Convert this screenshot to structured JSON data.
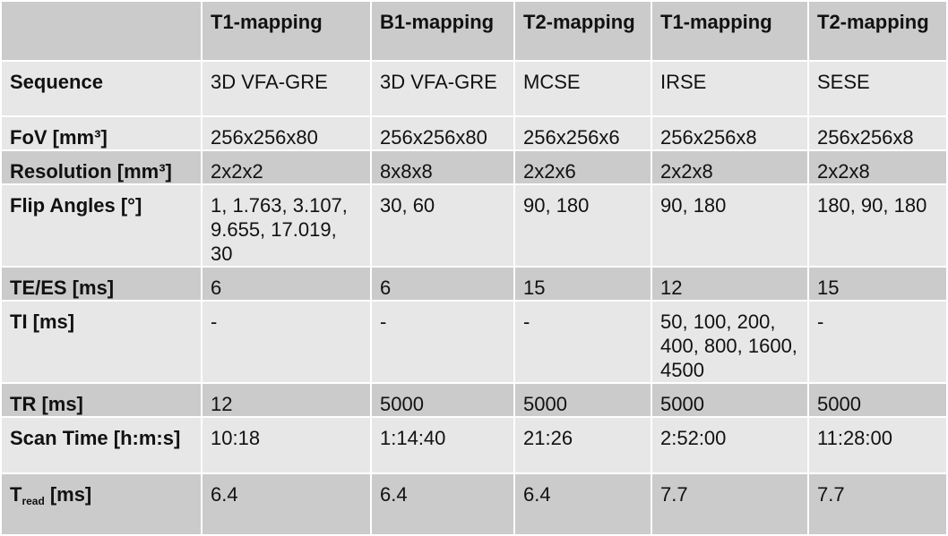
{
  "table": {
    "header": [
      "T1-mapping",
      "B1-mapping",
      "T2-mapping",
      "T1-mapping",
      "T2-mapping"
    ],
    "rows": [
      [
        "Sequence",
        "3D VFA-GRE",
        "3D VFA-GRE",
        "MCSE",
        "IRSE",
        "SESE"
      ],
      [
        "FoV [mm³]",
        "256x256x80",
        "256x256x80",
        "256x256x6",
        "256x256x8",
        "256x256x8"
      ],
      [
        "Resolution [mm³]",
        "2x2x2",
        "8x8x8",
        "2x2x6",
        "2x2x8",
        "2x2x8"
      ],
      [
        "Flip Angles [°]",
        "1, 1.763, 3.107, 9.655, 17.019, 30",
        "30, 60",
        "90, 180",
        "90, 180",
        "180, 90, 180"
      ],
      [
        "TE/ES [ms]",
        "6",
        "6",
        "15",
        "12",
        "15"
      ],
      [
        "TI [ms]",
        "-",
        "-",
        "-",
        "50, 100, 200, 400, 800, 1600, 4500",
        "-"
      ],
      [
        "TR [ms]",
        "12",
        "5000",
        "5000",
        "5000",
        "5000"
      ],
      [
        "Scan Time [h:m:s]",
        "10:18",
        "1:14:40",
        "21:26",
        "2:52:00",
        "11:28:00"
      ],
      [
        {
          "main": "T",
          "sub": "read",
          "rest": "[ms]"
        },
        "6.4",
        "6.4",
        "6.4",
        "7.7",
        "7.7"
      ]
    ]
  }
}
